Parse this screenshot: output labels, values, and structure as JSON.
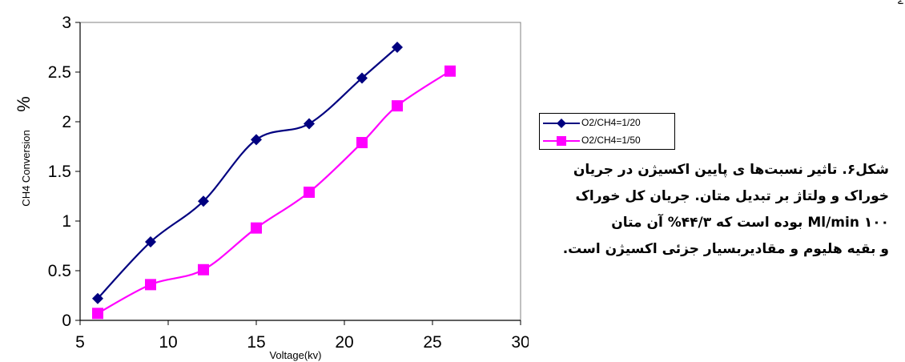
{
  "chart_data": {
    "type": "line",
    "xlabel": "Voltage(kv)",
    "ylabel": "CH4 Conversion",
    "ylabel_unit": "%",
    "xlim": [
      5,
      30
    ],
    "ylim": [
      0,
      3
    ],
    "xticks": [
      "5",
      "10",
      "15",
      "20",
      "25",
      "30"
    ],
    "yticks": [
      "0",
      "0.5",
      "1",
      "1.5",
      "2",
      "2.5",
      "3"
    ],
    "grid": false,
    "legend_position": "right",
    "series": [
      {
        "name": "O2/CH4=1/20",
        "color": "#000080",
        "marker": "diamond",
        "x": [
          6,
          9,
          12,
          15,
          18,
          21,
          23
        ],
        "y": [
          0.22,
          0.79,
          1.2,
          1.82,
          1.98,
          2.44,
          2.75
        ]
      },
      {
        "name": "O2/CH4=1/50",
        "color": "#FF00FF",
        "marker": "square",
        "x": [
          6,
          9,
          12,
          15,
          18,
          21,
          23,
          26
        ],
        "y": [
          0.07,
          0.36,
          0.51,
          0.93,
          1.29,
          1.79,
          2.16,
          2.51
        ]
      }
    ]
  },
  "caption": {
    "lines": [
      "شکل۶. تاثیر نسبت‌ها ی پایین اکسیژن در جریان",
      "خوراک و ولتاژ بر تبدیل متان. جریان کل خوراک",
      "Ml/min ۱۰۰ بوده است که ۴۴/۳% آن متان",
      "و بقیه هلیوم و مقادیربسیار جزئی اکسیژن است."
    ]
  },
  "corner_text": "ے"
}
